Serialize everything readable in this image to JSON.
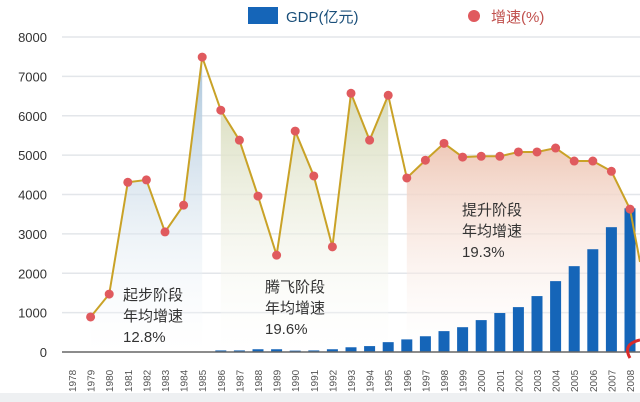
{
  "chart_data": {
    "type": "bar+line",
    "title": "",
    "xlabel": "",
    "ylabel": "",
    "ylim": [
      0,
      8000
    ],
    "yticks": [
      "0",
      "1000",
      "2000",
      "3000",
      "4000",
      "5000",
      "6000",
      "7000",
      "8000"
    ],
    "grid": true,
    "legend_placement": "top",
    "categories": [
      "1978",
      "1979",
      "1980",
      "1981",
      "1982",
      "1983",
      "1984",
      "1985",
      "1986",
      "1987",
      "1988",
      "1989",
      "1990",
      "1991",
      "1992",
      "1993",
      "1994",
      "1995",
      "1996",
      "1997",
      "1998",
      "1999",
      "2000",
      "2001",
      "2002",
      "2003",
      "2004",
      "2005",
      "2006",
      "2007",
      "2008"
    ],
    "series": [
      {
        "name": "GDP(亿元)",
        "kind": "bar",
        "color": "#1565b8",
        "values": [
          0,
          0,
          0,
          0,
          0,
          0,
          0,
          0,
          40,
          40,
          70,
          70,
          35,
          40,
          70,
          120,
          150,
          250,
          320,
          400,
          530,
          630,
          810,
          990,
          1140,
          1420,
          1800,
          2180,
          2610,
          3170,
          3650
        ]
      },
      {
        "name": "增速(%)",
        "kind": "line",
        "color": "#e05a5e",
        "line_color": "#c9a227",
        "values": [
          null,
          890,
          1470,
          4310,
          4370,
          3050,
          3730,
          7490,
          6140,
          5380,
          3960,
          2460,
          5610,
          4470,
          2670,
          6570,
          5380,
          6520,
          4420,
          4870,
          5300,
          4950,
          4970,
          4970,
          5080,
          5080,
          5180,
          4850,
          4850,
          4590,
          3630
        ]
      }
    ],
    "phases": [
      {
        "name": "起步阶段",
        "subtitle": "年均增速",
        "rate": "12.8%",
        "from": "1979",
        "to": "1985",
        "color": "#b9cfe0"
      },
      {
        "name": "腾飞阶段",
        "subtitle": "年均增速",
        "rate": "19.6%",
        "from": "1986",
        "to": "1995",
        "color": "#dfe2c8"
      },
      {
        "name": "提升阶段",
        "subtitle": "年均增速",
        "rate": "19.3%",
        "from": "1996",
        "to": "2008",
        "color": "#f3d6c8"
      }
    ]
  }
}
